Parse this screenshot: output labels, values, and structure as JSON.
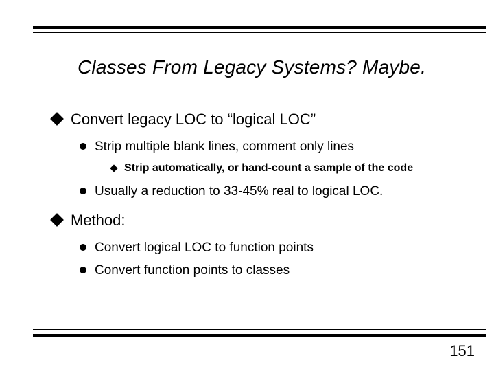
{
  "title": "Classes From Legacy Systems? Maybe.",
  "section1": {
    "heading": "Convert legacy LOC to “logical LOC”",
    "items": [
      {
        "text": "Strip multiple blank lines, comment only lines",
        "sub": "Strip automatically, or hand-count a sample of the code"
      },
      {
        "text": "Usually a reduction to 33-45% real to logical LOC."
      }
    ]
  },
  "section2": {
    "heading": "Method:",
    "items": [
      {
        "text": "Convert logical LOC to function points"
      },
      {
        "text": "Convert function points to classes"
      }
    ]
  },
  "pageNumber": "151"
}
